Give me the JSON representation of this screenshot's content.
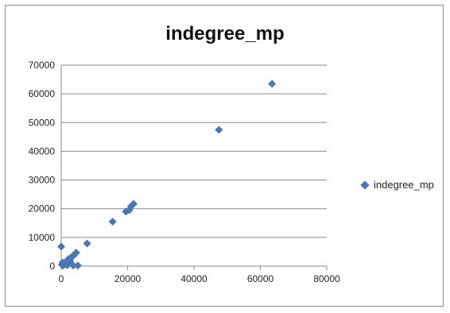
{
  "chart_data": {
    "type": "scatter",
    "title": "indegree_mp",
    "xlabel": "",
    "ylabel": "",
    "xlim": [
      0,
      80000
    ],
    "ylim": [
      0,
      70000
    ],
    "x_ticks": [
      "0",
      "20000",
      "40000",
      "60000",
      "80000"
    ],
    "y_ticks": [
      "0",
      "10000",
      "20000",
      "30000",
      "40000",
      "50000",
      "60000",
      "70000"
    ],
    "grid": "horizontal",
    "legend_position": "right",
    "series": [
      {
        "name": "indegree_mp",
        "color": "#4a78b5",
        "points": [
          {
            "x": 0,
            "y": 6800
          },
          {
            "x": 200,
            "y": 500
          },
          {
            "x": 400,
            "y": 1200
          },
          {
            "x": 600,
            "y": 200
          },
          {
            "x": 900,
            "y": 800
          },
          {
            "x": 1300,
            "y": 1500
          },
          {
            "x": 1800,
            "y": 300
          },
          {
            "x": 2200,
            "y": 2500
          },
          {
            "x": 2700,
            "y": 1800
          },
          {
            "x": 3200,
            "y": 3200
          },
          {
            "x": 3600,
            "y": 200
          },
          {
            "x": 4000,
            "y": 4000
          },
          {
            "x": 4500,
            "y": 4700
          },
          {
            "x": 5000,
            "y": 200
          },
          {
            "x": 7800,
            "y": 7900
          },
          {
            "x": 15500,
            "y": 15500
          },
          {
            "x": 19500,
            "y": 19000
          },
          {
            "x": 20500,
            "y": 19500
          },
          {
            "x": 21000,
            "y": 20800
          },
          {
            "x": 21800,
            "y": 21700
          },
          {
            "x": 47500,
            "y": 47500
          },
          {
            "x": 63500,
            "y": 63500
          }
        ]
      }
    ]
  }
}
